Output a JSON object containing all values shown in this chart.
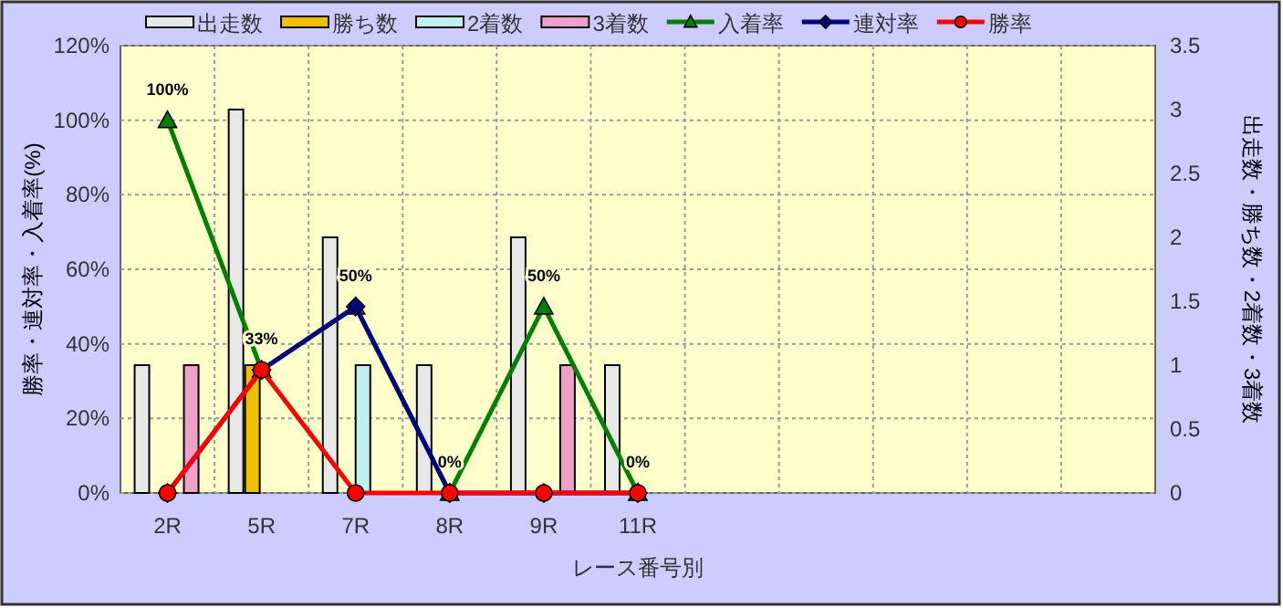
{
  "chart_data": {
    "type": "bar",
    "categories": [
      "2R",
      "5R",
      "7R",
      "8R",
      "9R",
      "11R",
      null,
      null,
      null,
      null,
      null
    ],
    "xlabel": "レース番号別",
    "ylabel": "勝率・連対率・入着率(%)",
    "y2label": "出走数・勝ち数・2着数・3着数",
    "ylim": [
      0,
      120
    ],
    "yticks": [
      {
        "value": 0,
        "label": "0%"
      },
      {
        "value": 20,
        "label": "20%"
      },
      {
        "value": 40,
        "label": "40%"
      },
      {
        "value": 60,
        "label": "60%"
      },
      {
        "value": 80,
        "label": "80%"
      },
      {
        "value": 100,
        "label": "100%"
      },
      {
        "value": 120,
        "label": "120%"
      }
    ],
    "y2lim": [
      0,
      3.5
    ],
    "y2ticks": [
      0,
      0.5,
      1,
      1.5,
      2,
      2.5,
      3,
      3.5
    ],
    "grid": true,
    "legend": "top",
    "series": [
      {
        "name": "出走数",
        "axis": "y2",
        "color": "#e8e8e8",
        "values": [
          1,
          3,
          2,
          1,
          2,
          1,
          null,
          null,
          null,
          null,
          null
        ]
      },
      {
        "name": "勝ち数",
        "axis": "y2",
        "color": "#f0c000",
        "values": [
          0,
          1,
          0,
          0,
          0,
          0,
          null,
          null,
          null,
          null,
          null
        ]
      },
      {
        "name": "2着数",
        "axis": "y2",
        "color": "#c0f0f0",
        "values": [
          0,
          0,
          1,
          0,
          0,
          0,
          null,
          null,
          null,
          null,
          null
        ]
      },
      {
        "name": "3着数",
        "axis": "y2",
        "color": "#f0a0c8",
        "values": [
          1,
          0,
          0,
          0,
          1,
          0,
          null,
          null,
          null,
          null,
          null
        ]
      },
      {
        "name": "入着率",
        "type": "line",
        "marker": "triangle",
        "color": "#008000",
        "values": [
          100,
          33,
          50,
          0,
          50,
          0,
          null,
          null,
          null,
          null,
          null
        ],
        "value_labels": [
          "100%",
          "33%",
          "50%",
          "0%",
          "50%",
          "0%",
          null,
          null,
          null,
          null,
          null
        ]
      },
      {
        "name": "連対率",
        "type": "line",
        "marker": "diamond",
        "color": "#000080",
        "values": [
          0,
          33,
          50,
          0,
          0,
          0,
          null,
          null,
          null,
          null,
          null
        ]
      },
      {
        "name": "勝率",
        "type": "line",
        "marker": "circle",
        "color": "#ff0000",
        "values": [
          0,
          33,
          0,
          0,
          0,
          0,
          null,
          null,
          null,
          null,
          null
        ]
      }
    ]
  }
}
